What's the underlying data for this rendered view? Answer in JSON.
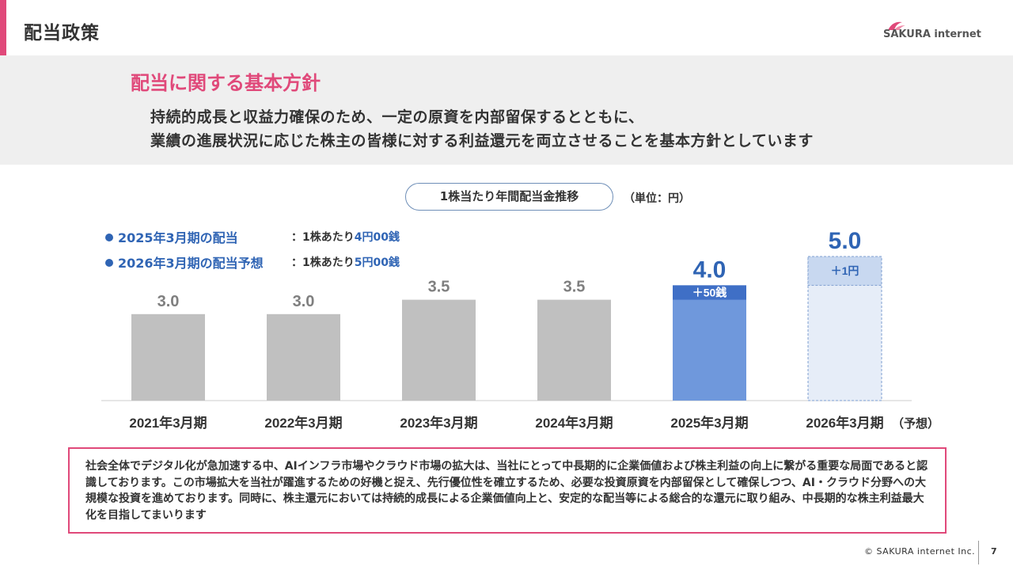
{
  "header": {
    "title": "配当政策",
    "logo_text": "SAKURA internet",
    "accent_color": "#e0497a"
  },
  "policy": {
    "title": "配当に関する基本方針",
    "line1": "持続的成長と収益力確保のため、一定の原資を内部留保するとともに、",
    "line2": "業績の進展状況に応じた株主の皆様に対する利益還元を両立させることを基本方針としています"
  },
  "chart_data": {
    "type": "bar",
    "title": "1株当たり年間配当金推移",
    "unit_note": "（単位：円）",
    "categories": [
      "2021年3月期",
      "2022年3月期",
      "2023年3月期",
      "2024年3月期",
      "2025年3月期",
      "2026年3月期"
    ],
    "forecast_suffix": "（予想）",
    "values": [
      3.0,
      3.0,
      3.5,
      3.5,
      4.0,
      5.0
    ],
    "value_labels": [
      "3.0",
      "3.0",
      "3.5",
      "3.5",
      "4.0",
      "5.0"
    ],
    "increments": [
      {
        "category": "2025年3月期",
        "amount": 0.5,
        "label": "＋50銭"
      },
      {
        "category": "2026年3月期",
        "amount": 1.0,
        "label": "＋1円"
      }
    ],
    "bar_colors": {
      "past": "#c0c0c0",
      "current": "#6f98dc",
      "current_increment": "#3f6fc6",
      "forecast": "#e6edf8",
      "forecast_increment": "#c8d8f0",
      "highlight_label": "#2f64b4",
      "past_label": "#7f7f7f"
    },
    "legend": [
      {
        "label": "2025年3月期の配当",
        "detail_prefix": "：1株あたり",
        "detail_amount": "4円00銭"
      },
      {
        "label": "2026年3月期の配当予想",
        "detail_prefix": "：1株あたり",
        "detail_amount": "5円00銭"
      }
    ],
    "ylim": [
      0,
      5.0
    ]
  },
  "note": {
    "text": "社会全体でデジタル化が急加速する中、AIインフラ市場やクラウド市場の拡大は、当社にとって中長期的に企業価値および株主利益の向上に繋がる重要な局面であると認識しております。この市場拡大を当社が躍進するための好機と捉え、先行優位性を確立するため、必要な投資原資を内部留保として確保しつつ、AI・クラウド分野への大規模な投資を進めております。同時に、株主還元においては持続的成長による企業価値向上と、安定的な配当等による総合的な還元に取り組み、中長期的な株主利益最大化を目指してまいります"
  },
  "footer": {
    "copyright": "© SAKURA internet Inc.",
    "page_number": "7"
  }
}
